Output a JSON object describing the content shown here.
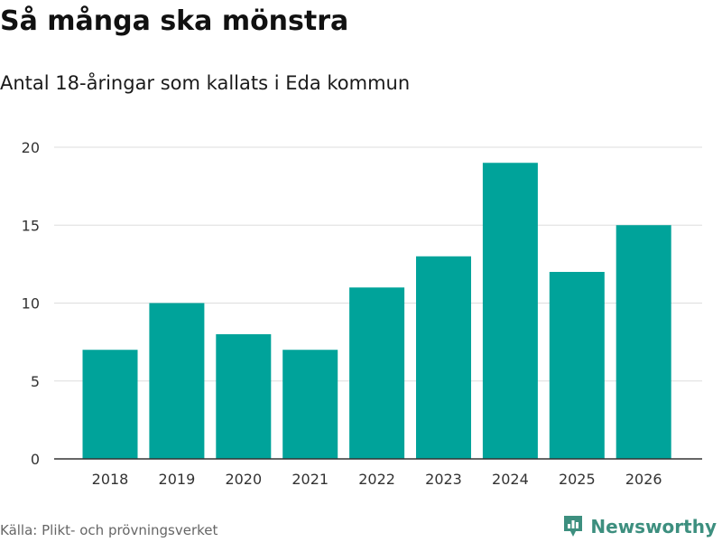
{
  "title": "Så många ska mönstra",
  "subtitle": "Antal 18-åringar som kallats i Eda kommun",
  "source": "Källa: Plikt- och prövningsverket",
  "brand": "Newsworthy",
  "colors": {
    "bar": "#00a39a",
    "brand": "#3d8f7f",
    "grid": "#dddddd",
    "axis": "#333333"
  },
  "chart_data": {
    "type": "bar",
    "title": "Så många ska mönstra",
    "subtitle": "Antal 18-åringar som kallats i Eda kommun",
    "xlabel": "",
    "ylabel": "",
    "categories": [
      "2018",
      "2019",
      "2020",
      "2021",
      "2022",
      "2023",
      "2024",
      "2025",
      "2026"
    ],
    "values": [
      7,
      10,
      8,
      7,
      11,
      13,
      19,
      12,
      15
    ],
    "ylim": [
      0,
      20
    ],
    "yticks": [
      0,
      5,
      10,
      15,
      20
    ],
    "grid": true,
    "legend": "none"
  }
}
